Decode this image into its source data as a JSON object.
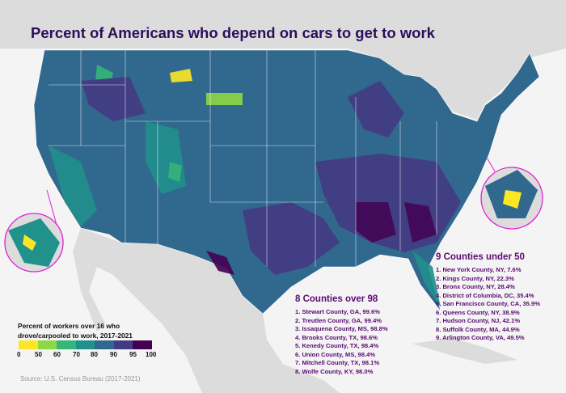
{
  "title": "Percent of Americans who depend on cars to get to work",
  "legend": {
    "title_line1": "Percent of workers over 16 who",
    "title_line2": "drove/carpooled to work,  2017-2021",
    "ticks": [
      "0",
      "50",
      "60",
      "70",
      "80",
      "90",
      "95",
      "100"
    ],
    "colors": [
      "#fde725",
      "#8fd744",
      "#35b779",
      "#21918c",
      "#31688e",
      "#443a83",
      "#440154"
    ]
  },
  "source": "Source: U.S. Census Bureau (2017-2021)",
  "over": {
    "heading": "8 Counties over 98",
    "items": [
      "1. Stewart County, GA, 99.6%",
      "2. Treutlen County, GA, 99.4%",
      "3. Issaquena County, MS, 98.8%",
      "4. Brooks County, TX, 98.6%",
      "5. Kenedy County, TX, 98.4%",
      "6. Union County, MS, 98.4%",
      "7. Mitchell County, TX, 98.1%",
      "8. Wolfe County, KY, 98.0%"
    ]
  },
  "under": {
    "heading": "9 Counties under 50",
    "items": [
      "1. New York County, NY, 7.6%",
      "2. Kings County, NY, 22.3%",
      "3. Bronx County, NY, 28.4%",
      "4. District of Columbia, DC, 35.4%",
      "5. San Francisco County, CA, 35.9%",
      "6. Queens County, NY, 38.9%",
      "7. Hudson County, NJ, 42.1%",
      "8. Suffolk County, MA, 44.9%",
      "9. Arlington County, VA, 49.5%"
    ]
  },
  "inset_border_color": "#e020d0"
}
